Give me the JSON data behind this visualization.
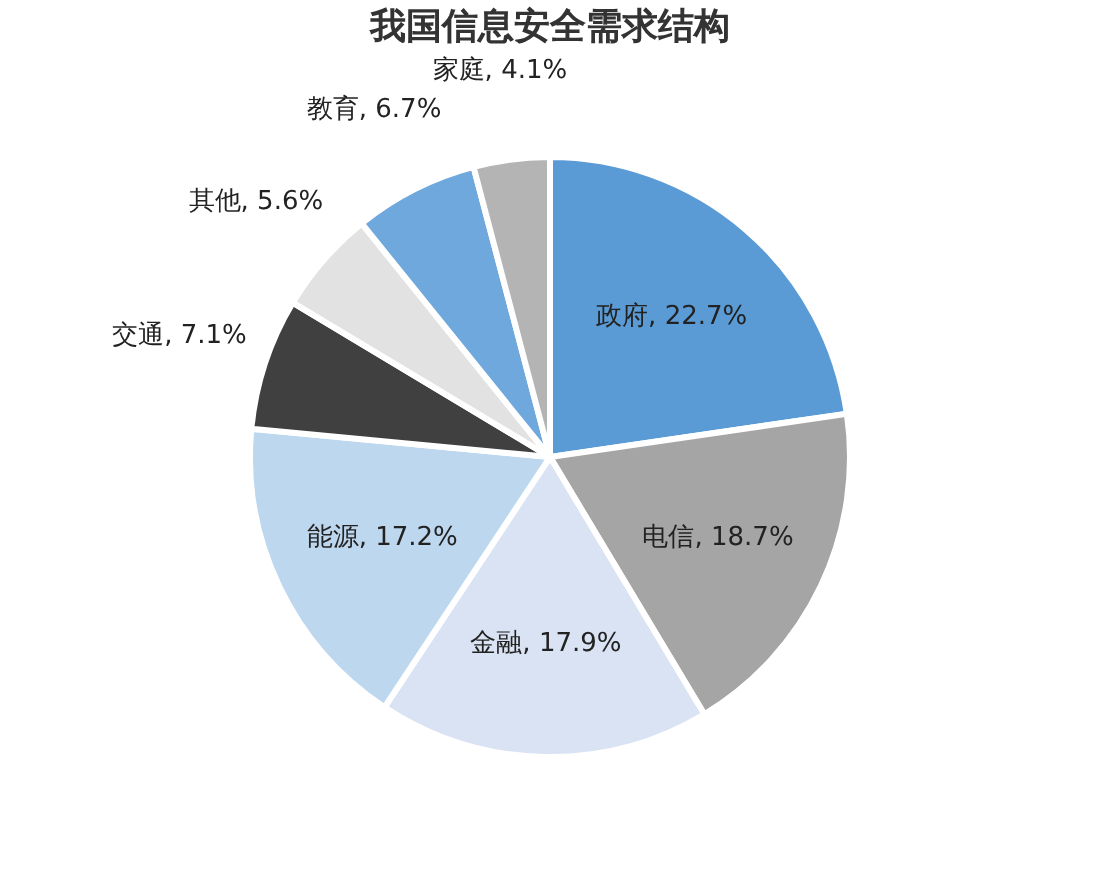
{
  "chart_data": {
    "type": "pie",
    "title": "我国信息安全需求结构",
    "categories": [
      "政府",
      "电信",
      "金融",
      "能源",
      "交通",
      "其他",
      "教育",
      "家庭"
    ],
    "values": [
      22.7,
      18.7,
      17.9,
      17.2,
      7.1,
      5.6,
      6.7,
      4.1
    ],
    "colors": [
      "#5b9bd5",
      "#a5a5a5",
      "#dae3f3",
      "#bdd7ee",
      "#404040",
      "#e2e2e2",
      "#6fa8dc",
      "#b4b4b4"
    ],
    "value_labels": [
      "22.7%",
      "18.7%",
      "17.9%",
      "17.2%",
      "7.1%",
      "5.6%",
      "6.7%",
      "4.1%"
    ],
    "legend": false
  }
}
